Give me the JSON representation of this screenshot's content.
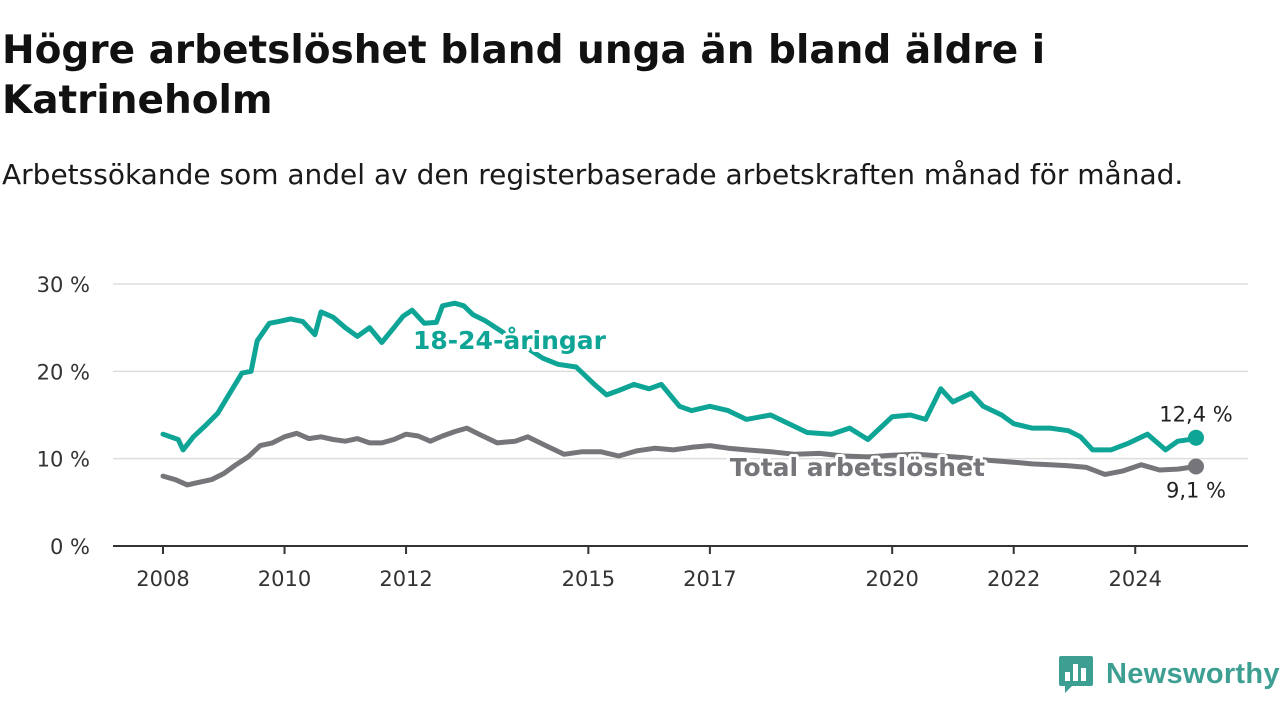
{
  "title": "Högre arbetslöshet bland unga än bland äldre i Katrineholm",
  "subtitle": "Arbetssökande som andel av den registerbaserade arbetskraften månad för månad.",
  "logo_text": "Newsworthy",
  "colors": {
    "youth": "#0fa596",
    "total": "#76767a",
    "axis": "#333333",
    "grid": "#dddddd"
  },
  "chart_data": {
    "type": "line",
    "title": "Högre arbetslöshet bland unga än bland äldre i Katrineholm",
    "subtitle": "Arbetssökande som andel av den registerbaserade arbetskraften månad för månad.",
    "xlabel": "",
    "ylabel": "",
    "xlim": [
      2008,
      2025.3
    ],
    "ylim": [
      0,
      30
    ],
    "yticks": [
      0,
      10,
      20,
      30
    ],
    "ytick_labels": [
      "0 %",
      "10 %",
      "20 %",
      "30 %"
    ],
    "xticks": [
      2008,
      2010,
      2012,
      2015,
      2017,
      2020,
      2022,
      2024
    ],
    "xtick_labels": [
      "2008",
      "2010",
      "2012",
      "2015",
      "2017",
      "2020",
      "2022",
      "2024"
    ],
    "grid": "horizontal",
    "series": [
      {
        "name": "18-24-åringar",
        "end_label": "12,4 %",
        "x": [
          2008.0,
          2008.25,
          2008.33,
          2008.5,
          2008.7,
          2008.9,
          2009.1,
          2009.3,
          2009.45,
          2009.55,
          2009.75,
          2009.9,
          2010.1,
          2010.3,
          2010.5,
          2010.6,
          2010.8,
          2011.0,
          2011.2,
          2011.4,
          2011.6,
          2011.8,
          2011.95,
          2012.1,
          2012.3,
          2012.5,
          2012.6,
          2012.8,
          2012.95,
          2013.1,
          2013.3,
          2014.25,
          2014.5,
          2014.8,
          2015.1,
          2015.3,
          2015.5,
          2015.75,
          2016.0,
          2016.2,
          2016.5,
          2016.7,
          2017.0,
          2017.3,
          2017.6,
          2018.0,
          2018.3,
          2018.6,
          2019.0,
          2019.3,
          2019.6,
          2020.0,
          2020.3,
          2020.55,
          2020.8,
          2021.0,
          2021.3,
          2021.5,
          2021.8,
          2022.0,
          2022.3,
          2022.6,
          2022.9,
          2023.1,
          2023.3,
          2023.6,
          2023.9,
          2024.2,
          2024.5,
          2024.7,
          2024.9,
          2025.0
        ],
        "values": [
          12.8,
          12.2,
          11.0,
          12.5,
          13.8,
          15.2,
          17.5,
          19.8,
          20.0,
          23.5,
          25.5,
          25.7,
          26.0,
          25.7,
          24.2,
          26.8,
          26.2,
          25.0,
          24.0,
          25.0,
          23.3,
          25.0,
          26.3,
          27.0,
          25.5,
          25.6,
          27.5,
          27.8,
          27.5,
          26.5,
          25.8,
          21.5,
          20.8,
          20.5,
          18.5,
          17.3,
          17.8,
          18.5,
          18.0,
          18.5,
          16.0,
          15.5,
          16.0,
          15.5,
          14.5,
          15.0,
          14.0,
          13.0,
          12.8,
          13.5,
          12.2,
          14.8,
          15.0,
          14.5,
          18.0,
          16.5,
          17.5,
          16.0,
          15.0,
          14.0,
          13.5,
          13.5,
          13.2,
          12.5,
          11.0,
          11.0,
          11.8,
          12.8,
          11.0,
          12.0,
          12.2,
          12.4
        ]
      },
      {
        "name": "Total arbetslöshet",
        "end_label": "9,1 %",
        "x": [
          2008.0,
          2008.2,
          2008.4,
          2008.6,
          2008.8,
          2009.0,
          2009.2,
          2009.4,
          2009.6,
          2009.8,
          2010.0,
          2010.2,
          2010.4,
          2010.6,
          2010.8,
          2011.0,
          2011.2,
          2011.4,
          2011.6,
          2011.8,
          2012.0,
          2012.2,
          2012.4,
          2012.6,
          2012.8,
          2013.0,
          2013.2,
          2013.5,
          2013.8,
          2014.0,
          2014.3,
          2014.6,
          2014.9,
          2015.2,
          2015.5,
          2015.8,
          2016.1,
          2016.4,
          2016.7,
          2017.0,
          2017.3,
          2017.6,
          2018.0,
          2018.4,
          2018.8,
          2019.2,
          2019.6,
          2020.0,
          2020.4,
          2020.8,
          2021.2,
          2021.6,
          2022.0,
          2022.3,
          2022.6,
          2022.9,
          2023.2,
          2023.5,
          2023.8,
          2024.1,
          2024.4,
          2024.7,
          2025.0
        ],
        "values": [
          8.0,
          7.6,
          7.0,
          7.3,
          7.6,
          8.3,
          9.3,
          10.2,
          11.5,
          11.8,
          12.5,
          12.9,
          12.3,
          12.5,
          12.2,
          12.0,
          12.3,
          11.8,
          11.8,
          12.2,
          12.8,
          12.6,
          12.0,
          12.6,
          13.1,
          13.5,
          12.8,
          11.8,
          12.0,
          12.5,
          11.5,
          10.5,
          10.8,
          10.8,
          10.3,
          10.9,
          11.2,
          11.0,
          11.3,
          11.5,
          11.2,
          11.0,
          10.8,
          10.5,
          10.6,
          10.3,
          10.2,
          10.4,
          10.5,
          10.3,
          10.1,
          9.8,
          9.6,
          9.4,
          9.3,
          9.2,
          9.0,
          8.2,
          8.6,
          9.3,
          8.7,
          8.8,
          9.1
        ]
      }
    ]
  }
}
